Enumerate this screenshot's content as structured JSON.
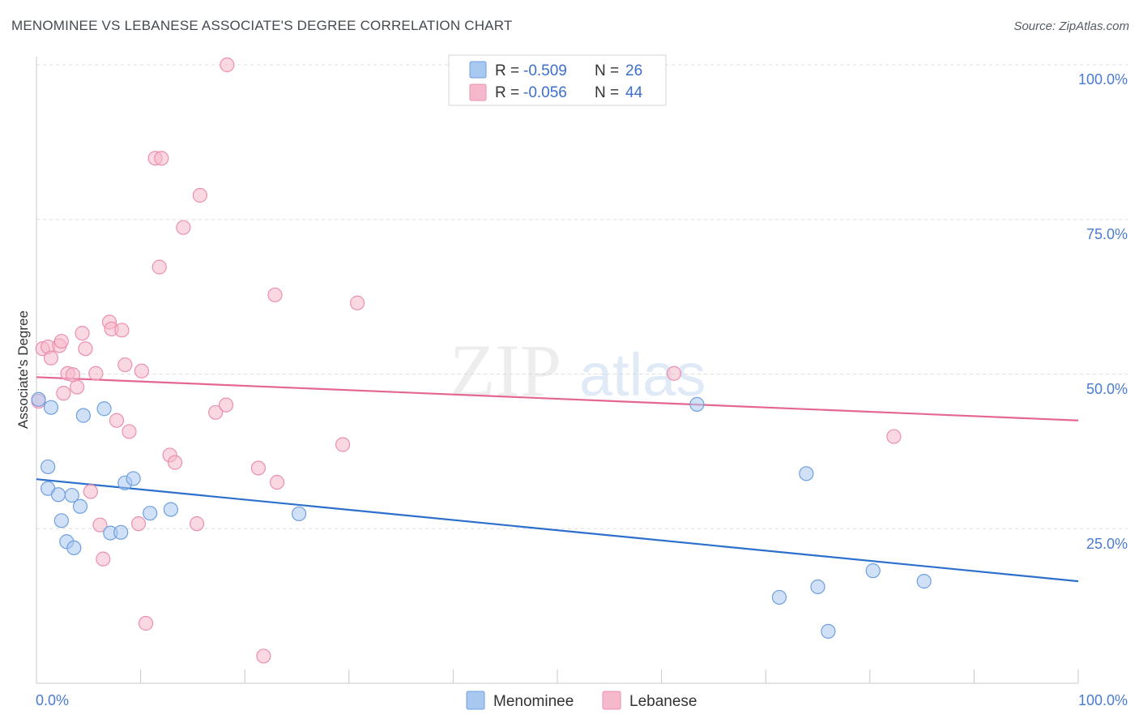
{
  "title": "MENOMINEE VS LEBANESE ASSOCIATE'S DEGREE CORRELATION CHART",
  "source": "Source: ZipAtlas.com",
  "watermark": {
    "zip": "ZIP",
    "atlas": "atlas"
  },
  "colors": {
    "menominee_fill": "#a9c8f0",
    "menominee_stroke": "#6f9fdf",
    "menominee_line": "#2d6fcc",
    "lebanese_fill": "#f6b8cb",
    "lebanese_stroke": "#ec8faf",
    "lebanese_line": "#e4678f",
    "tick_text": "#4a7bd0",
    "grid": "#dcdcdc"
  },
  "legend_top": [
    {
      "series": "Menominee",
      "r_label": "R = ",
      "r_value": "-0.509",
      "n_label": "N = ",
      "n_value": "26"
    },
    {
      "series": "Lebanese",
      "r_label": "R = ",
      "r_value": "-0.056",
      "n_label": "N = ",
      "n_value": "44"
    }
  ],
  "legend_bottom": [
    "Menominee",
    "Lebanese"
  ],
  "chart_data": {
    "type": "scatter",
    "title": "MENOMINEE VS LEBANESE ASSOCIATE'S DEGREE CORRELATION CHART",
    "xlabel": "",
    "ylabel": "Associate's Degree",
    "xlim": [
      0,
      100
    ],
    "ylim": [
      0,
      100
    ],
    "x_tick_labels": [
      "0.0%",
      "100.0%"
    ],
    "y_ticks": [
      25,
      50,
      75,
      100
    ],
    "y_tick_labels": [
      "25.0%",
      "50.0%",
      "75.0%",
      "100.0%"
    ],
    "grid": true,
    "series": [
      {
        "name": "Menominee",
        "r": -0.509,
        "n": 26,
        "trendline": {
          "x": [
            0,
            100
          ],
          "y": [
            33.0,
            16.5
          ]
        },
        "points": [
          [
            0.2,
            45.9
          ],
          [
            1.1,
            31.5
          ],
          [
            1.1,
            35.0
          ],
          [
            1.4,
            44.6
          ],
          [
            2.1,
            30.5
          ],
          [
            2.4,
            26.3
          ],
          [
            2.9,
            22.9
          ],
          [
            3.4,
            30.4
          ],
          [
            3.6,
            21.9
          ],
          [
            4.2,
            28.6
          ],
          [
            4.5,
            43.3
          ],
          [
            6.5,
            44.4
          ],
          [
            7.1,
            24.3
          ],
          [
            8.1,
            24.4
          ],
          [
            8.5,
            32.4
          ],
          [
            9.3,
            33.1
          ],
          [
            10.9,
            27.5
          ],
          [
            12.9,
            28.1
          ],
          [
            25.2,
            27.4
          ],
          [
            63.4,
            45.1
          ],
          [
            71.3,
            13.9
          ],
          [
            73.9,
            33.9
          ],
          [
            75.0,
            15.6
          ],
          [
            76.0,
            8.4
          ],
          [
            80.3,
            18.2
          ],
          [
            85.2,
            16.5
          ]
        ]
      },
      {
        "name": "Lebanese",
        "r": -0.056,
        "n": 44,
        "trendline": {
          "x": [
            0,
            100
          ],
          "y": [
            49.5,
            42.5
          ]
        },
        "points": [
          [
            0.2,
            45.6
          ],
          [
            0.6,
            54.1
          ],
          [
            1.1,
            54.4
          ],
          [
            1.4,
            52.6
          ],
          [
            2.2,
            54.6
          ],
          [
            2.4,
            55.3
          ],
          [
            2.6,
            46.9
          ],
          [
            3.0,
            50.1
          ],
          [
            3.5,
            49.9
          ],
          [
            3.9,
            47.9
          ],
          [
            4.4,
            56.6
          ],
          [
            4.7,
            54.1
          ],
          [
            5.2,
            31.0
          ],
          [
            5.7,
            50.1
          ],
          [
            6.1,
            25.6
          ],
          [
            6.4,
            20.1
          ],
          [
            7.0,
            58.4
          ],
          [
            7.2,
            57.3
          ],
          [
            7.7,
            42.5
          ],
          [
            8.2,
            57.1
          ],
          [
            8.5,
            51.5
          ],
          [
            8.9,
            40.7
          ],
          [
            9.8,
            25.8
          ],
          [
            10.1,
            50.5
          ],
          [
            10.5,
            9.7
          ],
          [
            11.4,
            84.9
          ],
          [
            12.0,
            84.9
          ],
          [
            11.8,
            67.3
          ],
          [
            12.8,
            36.9
          ],
          [
            13.3,
            35.7
          ],
          [
            14.1,
            73.7
          ],
          [
            15.4,
            25.8
          ],
          [
            15.7,
            78.9
          ],
          [
            17.2,
            43.8
          ],
          [
            18.2,
            45.0
          ],
          [
            18.3,
            100.0
          ],
          [
            21.3,
            34.8
          ],
          [
            21.8,
            4.4
          ],
          [
            22.9,
            62.8
          ],
          [
            23.1,
            32.5
          ],
          [
            29.4,
            38.6
          ],
          [
            30.8,
            61.5
          ],
          [
            61.2,
            50.1
          ],
          [
            82.3,
            39.9
          ]
        ]
      }
    ]
  }
}
